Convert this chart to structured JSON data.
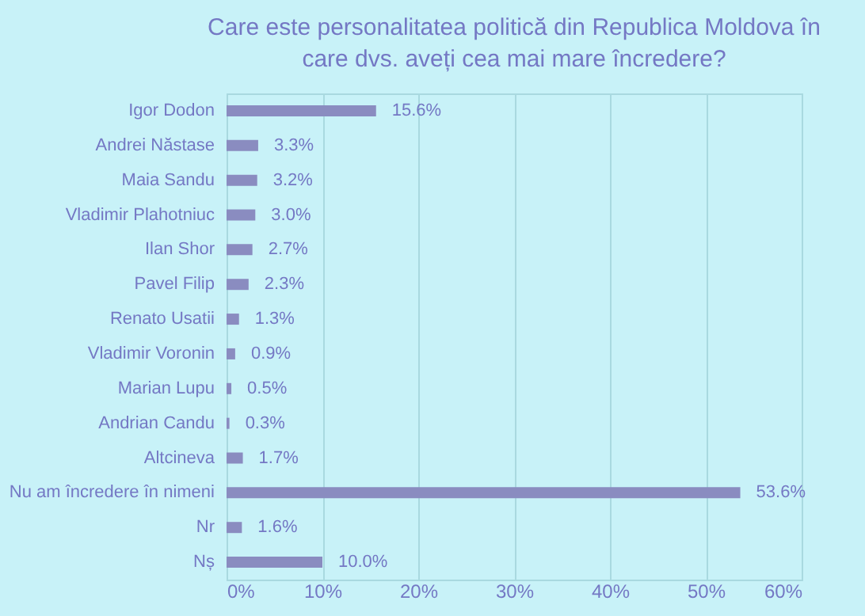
{
  "chart_data": {
    "type": "bar",
    "orientation": "horizontal",
    "title": "Care este personalitatea politică din Republica Moldova în care dvs. aveți cea mai mare încredere?",
    "categories": [
      "Igor Dodon",
      "Andrei Năstase",
      "Maia Sandu",
      "Vladimir Plahotniuc",
      "Ilan Shor",
      "Pavel Filip",
      "Renato Usatii",
      "Vladimir Voronin",
      "Marian Lupu",
      "Andrian Candu",
      "Altcineva",
      "Nu am încredere în nimeni",
      "Nr",
      "Nș"
    ],
    "values": [
      15.6,
      3.3,
      3.2,
      3.0,
      2.7,
      2.3,
      1.3,
      0.9,
      0.5,
      0.3,
      1.7,
      53.6,
      1.6,
      10.0
    ],
    "value_labels": [
      "15.6%",
      "3.3%",
      "3.2%",
      "3.0%",
      "2.7%",
      "2.3%",
      "1.3%",
      "0.9%",
      "0.5%",
      "0.3%",
      "1.7%",
      "53.6%",
      "1.6%",
      "10.0%"
    ],
    "color": "#8a8cc0",
    "xlim": [
      0,
      60
    ],
    "xticks": [
      {
        "value": 0,
        "label": "0%"
      },
      {
        "value": 10,
        "label": "10%"
      },
      {
        "value": 20,
        "label": "20%"
      },
      {
        "value": 30,
        "label": "30%"
      },
      {
        "value": 40,
        "label": "40%"
      },
      {
        "value": 50,
        "label": "50%"
      },
      {
        "value": 60,
        "label": "60%"
      }
    ],
    "grid": "x"
  }
}
